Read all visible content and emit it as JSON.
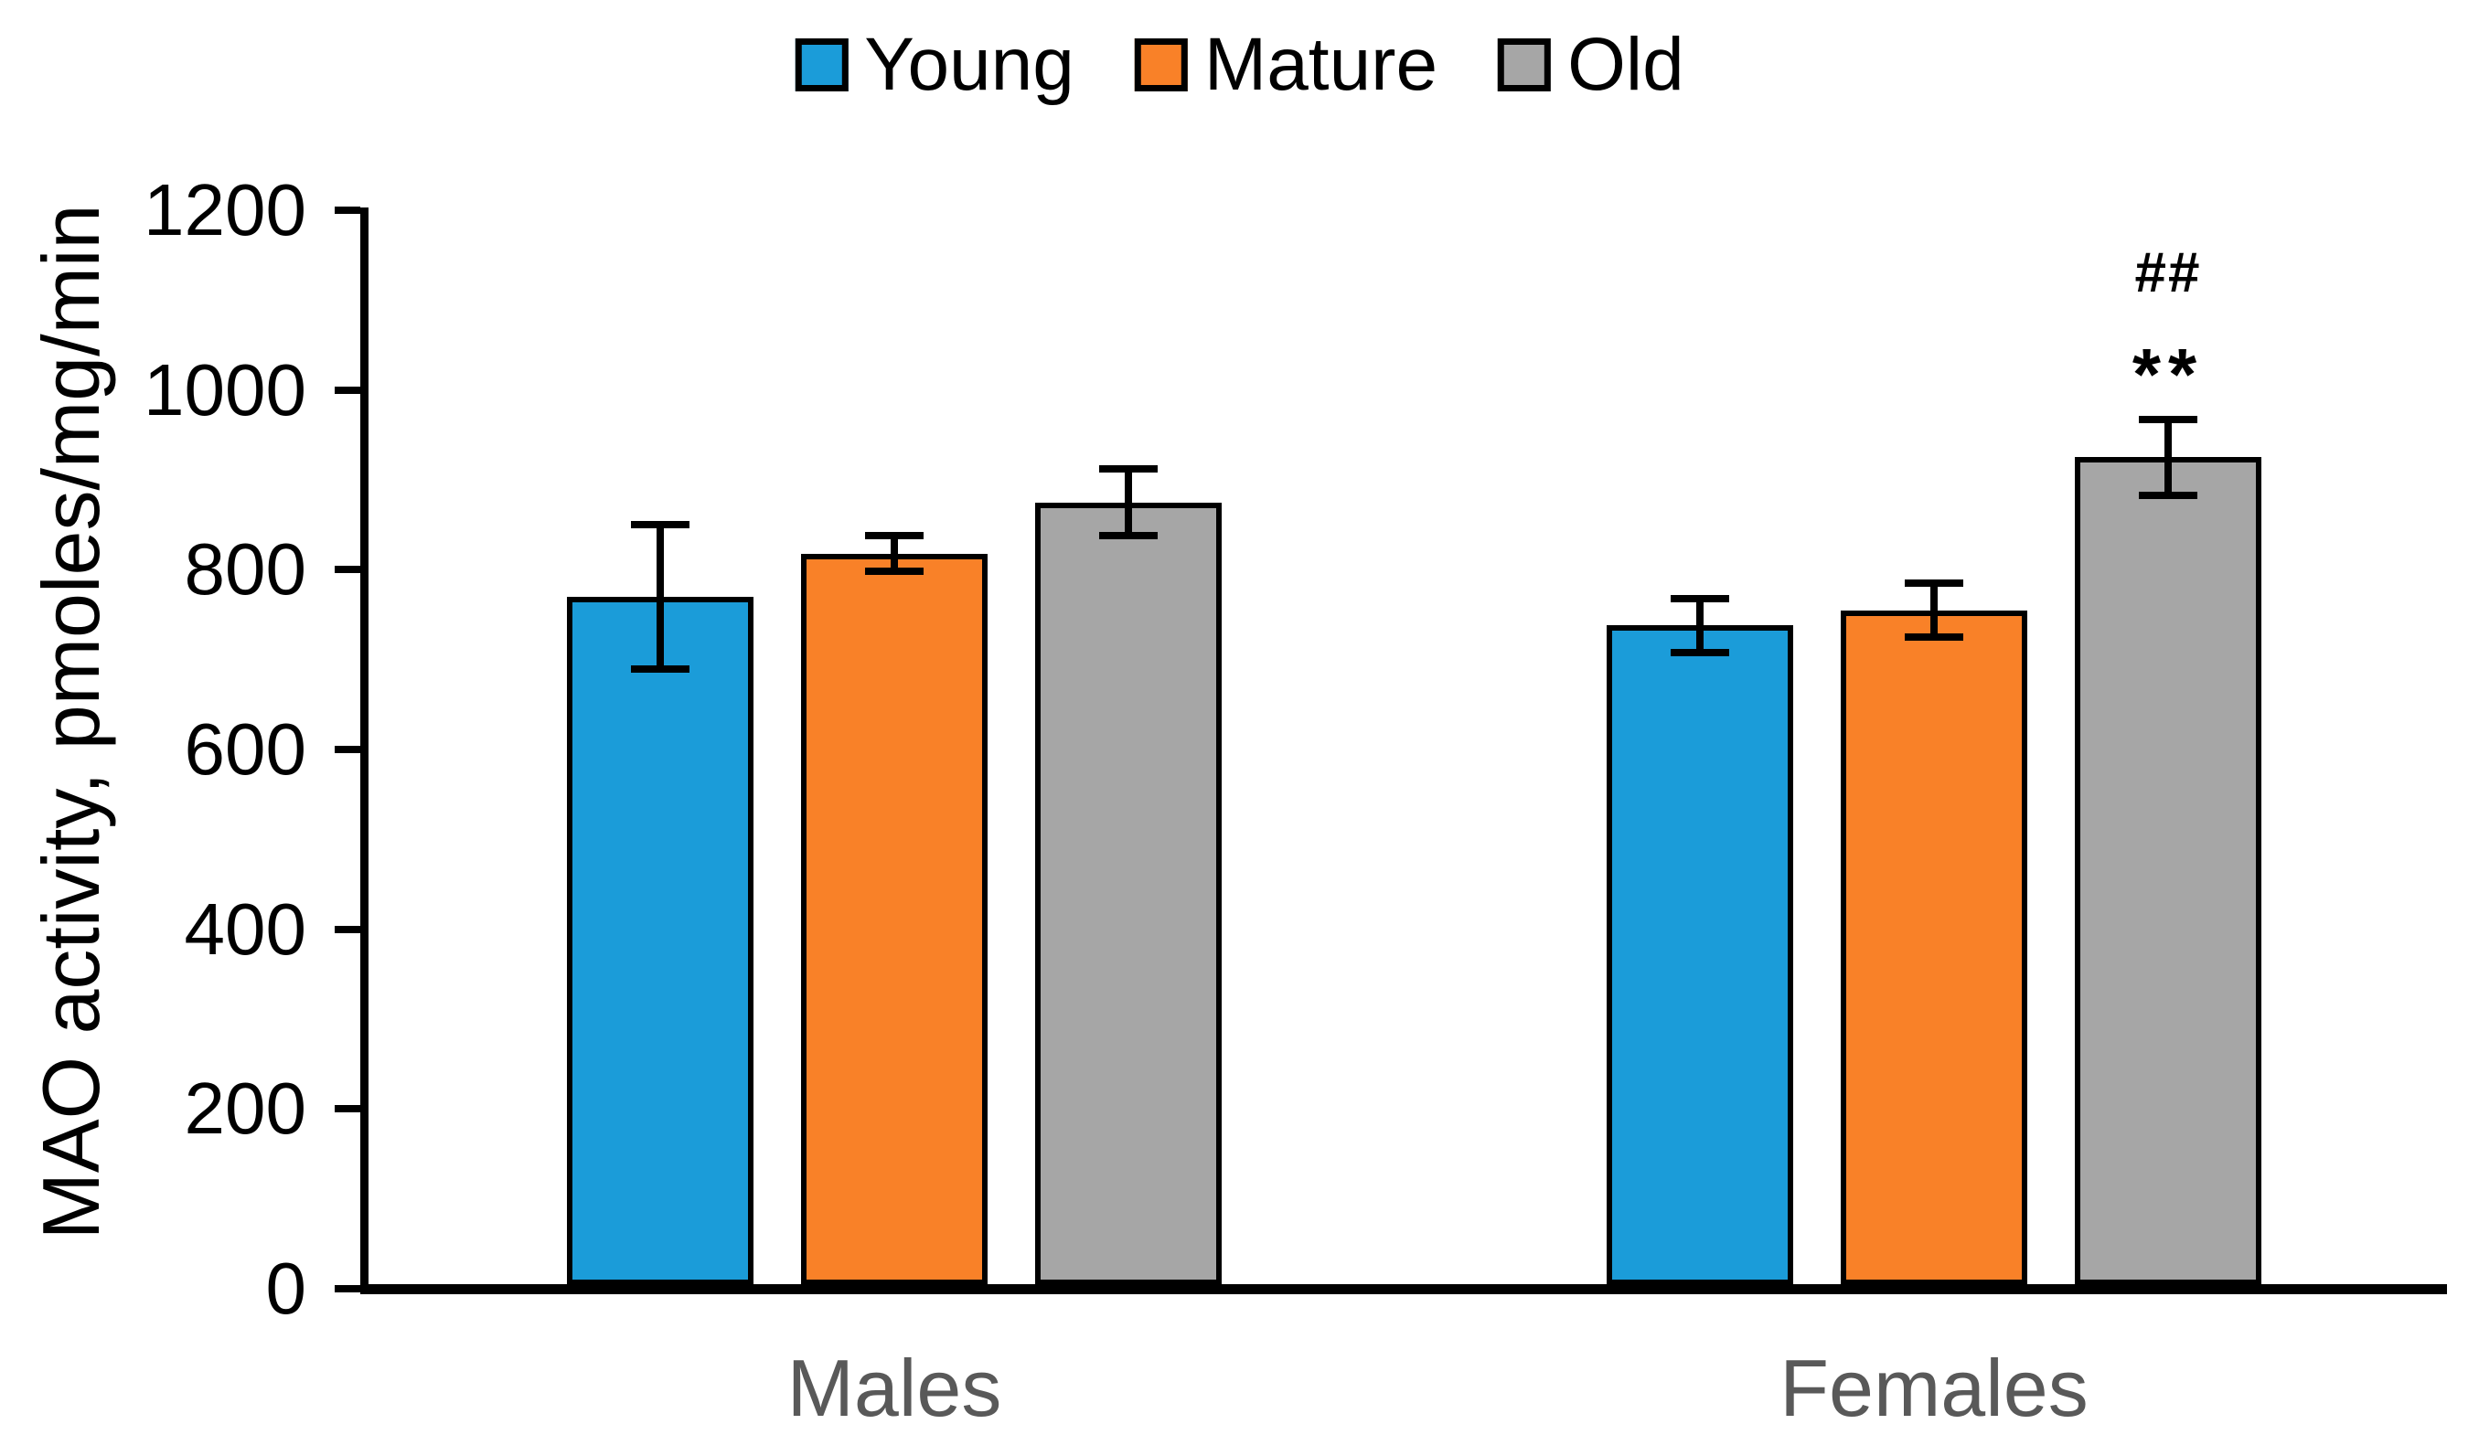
{
  "chart_data": {
    "type": "bar",
    "title": "",
    "xlabel": "",
    "ylabel": "MAO activity, pmoles/mg/min",
    "ylim": [
      0,
      1200
    ],
    "yticks": [
      0,
      200,
      400,
      600,
      800,
      1000,
      1200
    ],
    "grid": false,
    "legend_position": "top-center",
    "categories": [
      "Males",
      "Females"
    ],
    "category_label_color": "#595959",
    "bar_border_color": "#000000",
    "error_bar_color": "#000000",
    "series": [
      {
        "name": "Young",
        "color": "#1B9CD9",
        "values": [
          770,
          738
        ],
        "errors": [
          80,
          30
        ]
      },
      {
        "name": "Mature",
        "color": "#F98128",
        "values": [
          818,
          755
        ],
        "errors": [
          20,
          30
        ]
      },
      {
        "name": "Old",
        "color": "#A6A6A6",
        "values": [
          875,
          925
        ],
        "errors": [
          37,
          42
        ]
      }
    ],
    "annotations": [
      {
        "text": "##",
        "category": "Females",
        "series": "Old"
      },
      {
        "text": "**",
        "category": "Females",
        "series": "Old"
      }
    ]
  }
}
